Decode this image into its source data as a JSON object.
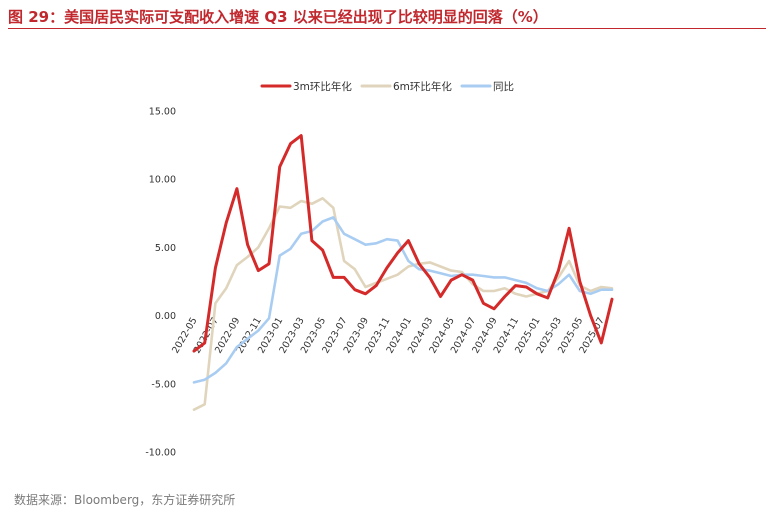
{
  "title": "图 29：美国居民实际可支配收入增速 Q3 以来已经出现了比较明显的回落（%）",
  "source": "数据来源：Bloomberg，东方证券研究所",
  "chart_data": {
    "type": "line",
    "title": "",
    "xlabel": "",
    "ylabel": "",
    "ylim": [
      -10,
      15
    ],
    "yticks": [
      "15.00",
      "10.00",
      "5.00",
      "0.00",
      "-5.00",
      "-10.00"
    ],
    "legend_position": "top-center",
    "x_tick_labels": [
      "2022-05",
      "2022-07",
      "2022-09",
      "2022-11",
      "2023-01",
      "2023-03",
      "2023-05",
      "2023-07",
      "2023-09",
      "2023-11",
      "2024-01",
      "2024-03",
      "2024-05",
      "2024-07",
      "2024-09",
      "2024-11",
      "2025-01",
      "2025-03",
      "2025-05",
      "2025-07"
    ],
    "x": [
      "2022-05",
      "2022-06",
      "2022-07",
      "2022-08",
      "2022-09",
      "2022-10",
      "2022-11",
      "2022-12",
      "2023-01",
      "2023-02",
      "2023-03",
      "2023-04",
      "2023-05",
      "2023-06",
      "2023-07",
      "2023-08",
      "2023-09",
      "2023-10",
      "2023-11",
      "2023-12",
      "2024-01",
      "2024-02",
      "2024-03",
      "2024-04",
      "2024-05",
      "2024-06",
      "2024-07",
      "2024-08",
      "2024-09",
      "2024-10",
      "2024-11",
      "2024-12",
      "2025-01",
      "2025-02",
      "2025-03",
      "2025-04",
      "2025-05",
      "2025-06",
      "2025-07",
      "2025-08"
    ],
    "series": [
      {
        "name": "3m环比年化",
        "color": "#d42a2a",
        "values": [
          -2.6,
          -2.0,
          3.5,
          6.8,
          9.3,
          5.2,
          3.3,
          3.8,
          10.9,
          12.6,
          13.2,
          5.5,
          4.8,
          2.8,
          2.8,
          1.9,
          1.6,
          2.2,
          3.5,
          4.6,
          5.5,
          3.8,
          2.8,
          1.4,
          2.6,
          3.0,
          2.6,
          0.9,
          0.5,
          1.4,
          2.2,
          2.1,
          1.6,
          1.3,
          3.3,
          6.4,
          2.5,
          0.0,
          -2.0,
          1.2
        ]
      },
      {
        "name": "6m环比年化",
        "color": "#e0d5bc",
        "values": [
          -6.9,
          -6.5,
          0.9,
          2.0,
          3.7,
          4.3,
          5.0,
          6.4,
          8.0,
          7.9,
          8.4,
          8.2,
          8.6,
          7.9,
          4.0,
          3.4,
          2.1,
          2.4,
          2.7,
          3.0,
          3.6,
          3.8,
          3.9,
          3.6,
          3.3,
          3.2,
          2.3,
          1.8,
          1.8,
          2.0,
          1.6,
          1.4,
          1.6,
          1.8,
          2.8,
          4.0,
          2.2,
          1.8,
          2.1,
          2.0
        ]
      },
      {
        "name": "同比",
        "color": "#a9cdf2",
        "values": [
          -4.9,
          -4.7,
          -4.2,
          -3.5,
          -2.3,
          -1.7,
          -1.1,
          -0.2,
          4.4,
          4.9,
          6.0,
          6.2,
          6.9,
          7.2,
          6.0,
          5.6,
          5.2,
          5.3,
          5.6,
          5.5,
          4.0,
          3.4,
          3.3,
          3.1,
          2.9,
          3.0,
          3.0,
          2.9,
          2.8,
          2.8,
          2.6,
          2.4,
          2.0,
          1.8,
          2.3,
          3.0,
          1.8,
          1.6,
          1.9,
          1.9
        ]
      }
    ]
  }
}
